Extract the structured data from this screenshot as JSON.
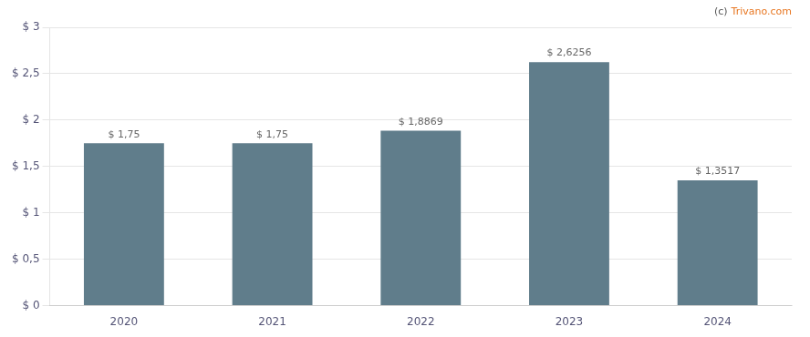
{
  "chart_data": {
    "type": "bar",
    "categories": [
      "2020",
      "2021",
      "2022",
      "2023",
      "2024"
    ],
    "values": [
      1.75,
      1.75,
      1.8869,
      2.6256,
      1.3517
    ],
    "value_labels": [
      "$ 1,75",
      "$ 1,75",
      "$ 1,8869",
      "$ 2,6256",
      "$ 1,3517"
    ],
    "data_labels": true,
    "color": "#607d8b",
    "ylim": [
      0,
      3.0
    ],
    "yticks": [
      {
        "value": 0,
        "label": "$ 0"
      },
      {
        "value": 0.5,
        "label": "$ 0,5"
      },
      {
        "value": 1.0,
        "label": "$ 1"
      },
      {
        "value": 1.5,
        "label": "$ 1,5"
      },
      {
        "value": 2.0,
        "label": "$ 2"
      },
      {
        "value": 2.5,
        "label": "$ 2,5"
      },
      {
        "value": 3.0,
        "label": "$ 3"
      }
    ],
    "grid": true,
    "annotations": [
      {
        "text": "(c)",
        "color": "#555555"
      },
      {
        "text": "Trivano.com",
        "color": "#e87722"
      }
    ]
  }
}
